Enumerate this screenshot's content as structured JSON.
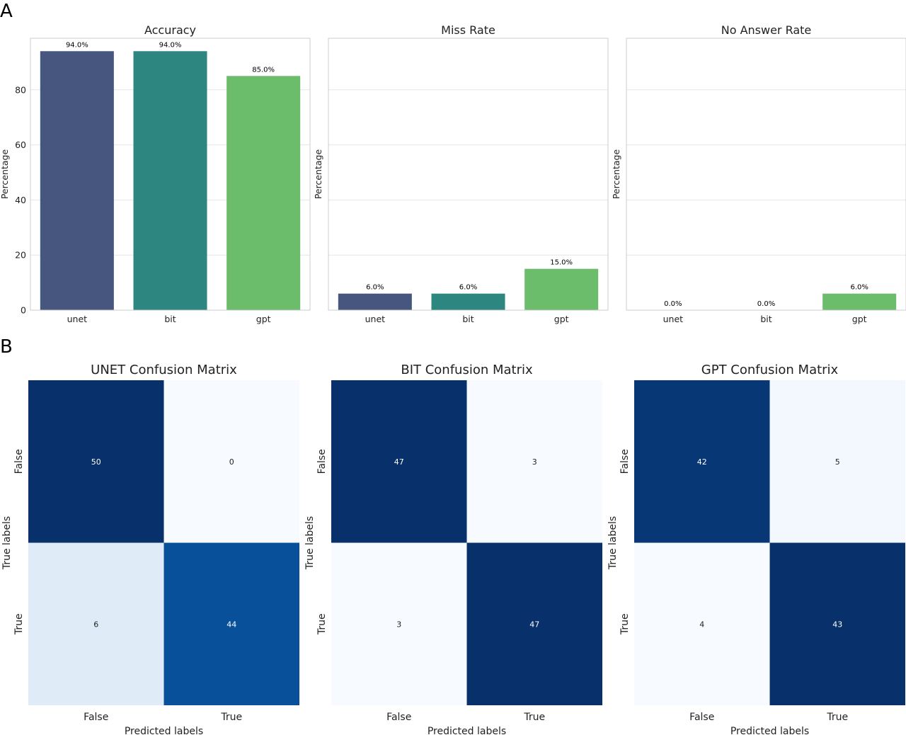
{
  "panels": {
    "a": "A",
    "b": "B"
  },
  "colors": {
    "unet": "#46567f",
    "bit": "#2e8680",
    "gpt": "#6cbd6b",
    "grid": "#e6e6e6",
    "frame": "#cccccc",
    "cmap_low": "#f7fbff",
    "cmap_high": "#08306b"
  },
  "chart_data": [
    {
      "type": "bar",
      "title": "Accuracy",
      "ylabel": "Percentage",
      "xlabel": "",
      "categories": [
        "unet",
        "bit",
        "gpt"
      ],
      "values": [
        94.0,
        94.0,
        85.0
      ],
      "value_labels": [
        "94.0%",
        "94.0%",
        "85.0%"
      ],
      "ylim": [
        0,
        98.7
      ],
      "yticks": [
        0,
        20,
        40,
        60,
        80
      ],
      "ytick_labels": [
        "0",
        "20",
        "40",
        "60",
        "80"
      ],
      "grid": true
    },
    {
      "type": "bar",
      "title": "Miss Rate",
      "ylabel": "Percentage",
      "xlabel": "",
      "categories": [
        "unet",
        "bit",
        "gpt"
      ],
      "values": [
        6.0,
        6.0,
        15.0
      ],
      "value_labels": [
        "6.0%",
        "6.0%",
        "15.0%"
      ],
      "ylim": [
        0,
        98.7
      ],
      "yticks": [
        0,
        20,
        40,
        60,
        80
      ],
      "ytick_labels": [],
      "grid": true
    },
    {
      "type": "bar",
      "title": "No Answer Rate",
      "ylabel": "Percentage",
      "xlabel": "",
      "categories": [
        "unet",
        "bit",
        "gpt"
      ],
      "values": [
        0.0,
        0.0,
        6.0
      ],
      "value_labels": [
        "0.0%",
        "0.0%",
        "6.0%"
      ],
      "ylim": [
        0,
        98.7
      ],
      "yticks": [
        0,
        20,
        40,
        60,
        80
      ],
      "ytick_labels": [],
      "grid": true
    },
    {
      "type": "heatmap",
      "title": "UNET Confusion Matrix",
      "xlabel": "Predicted labels",
      "ylabel": "True labels",
      "x_categories": [
        "False",
        "True"
      ],
      "y_categories": [
        "False",
        "True"
      ],
      "values": [
        [
          50,
          0
        ],
        [
          6,
          44
        ]
      ],
      "vmin": 0,
      "vmax": 50
    },
    {
      "type": "heatmap",
      "title": "BIT Confusion Matrix",
      "xlabel": "Predicted labels",
      "ylabel": "True labels",
      "x_categories": [
        "False",
        "True"
      ],
      "y_categories": [
        "False",
        "True"
      ],
      "values": [
        [
          47,
          3
        ],
        [
          3,
          47
        ]
      ],
      "vmin": 3,
      "vmax": 47
    },
    {
      "type": "heatmap",
      "title": "GPT Confusion Matrix",
      "xlabel": "Predicted labels",
      "ylabel": "True labels",
      "x_categories": [
        "False",
        "True"
      ],
      "y_categories": [
        "False",
        "True"
      ],
      "values": [
        [
          42,
          5
        ],
        [
          4,
          43
        ]
      ],
      "vmin": 4,
      "vmax": 43
    }
  ]
}
